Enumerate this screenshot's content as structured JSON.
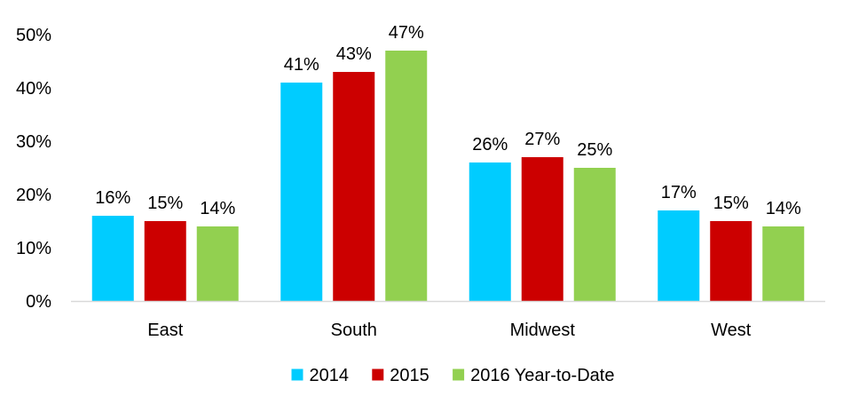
{
  "chart_data": {
    "type": "bar",
    "categories": [
      "East",
      "South",
      "Midwest",
      "West"
    ],
    "series": [
      {
        "name": "2014",
        "values": [
          16,
          41,
          26,
          17
        ],
        "color": "#00CCFF"
      },
      {
        "name": "2015",
        "values": [
          15,
          43,
          27,
          15
        ],
        "color": "#CC0000"
      },
      {
        "name": "2016 Year-to-Date",
        "values": [
          14,
          47,
          25,
          14
        ],
        "color": "#92D050"
      }
    ],
    "data_labels": [
      [
        "16%",
        "41%",
        "26%",
        "17%"
      ],
      [
        "15%",
        "43%",
        "27%",
        "15%"
      ],
      [
        "14%",
        "47%",
        "25%",
        "14%"
      ]
    ],
    "title": "",
    "xlabel": "",
    "ylabel": "",
    "ylim": [
      0,
      50
    ],
    "yticks": [
      0,
      10,
      20,
      30,
      40,
      50
    ],
    "ytick_labels": [
      "0%",
      "10%",
      "20%",
      "30%",
      "40%",
      "50%"
    ],
    "grid": false,
    "legend_position": "bottom"
  }
}
